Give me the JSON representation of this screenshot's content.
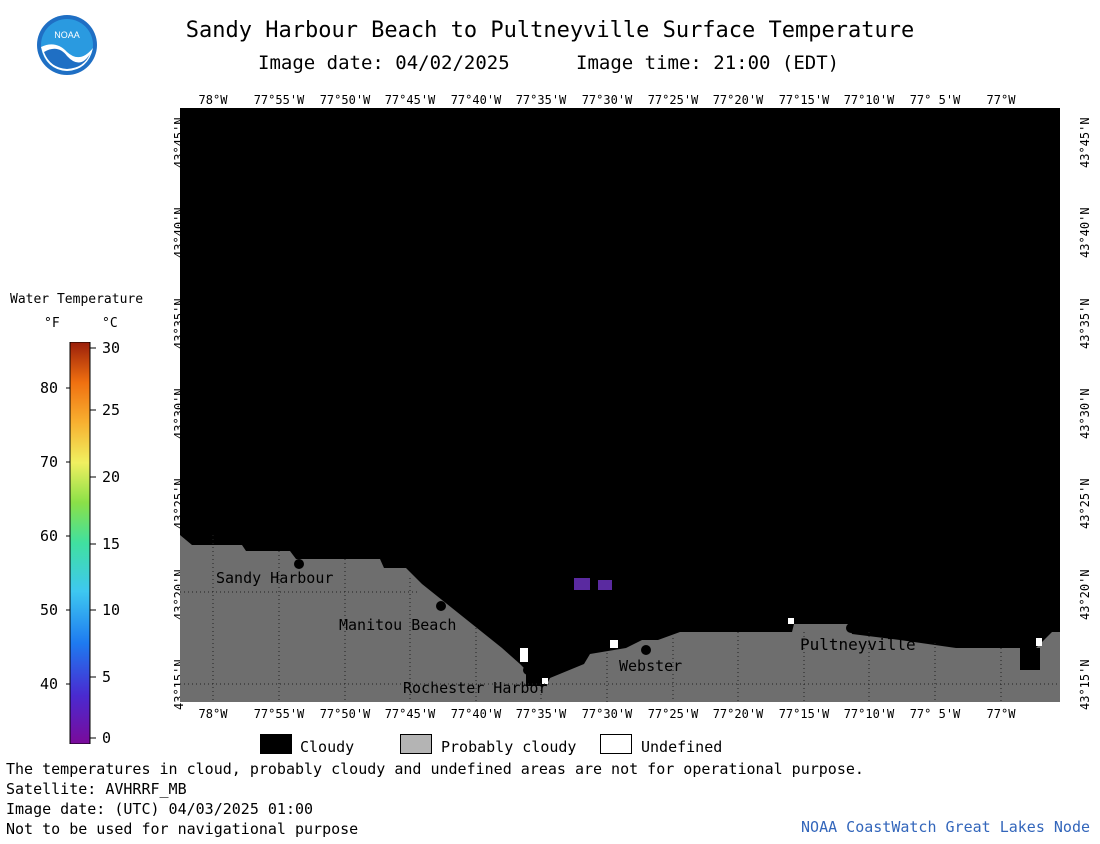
{
  "title": "Sandy Harbour Beach to Pultneyville Surface Temperature",
  "image_date": "Image date: 04/02/2025",
  "image_time": "Image time: 21:00 (EDT)",
  "logo": {
    "icon": "noaa-logo-icon",
    "text": "NOAA"
  },
  "longitude_labels": [
    "78°W",
    "77°55'W",
    "77°50'W",
    "77°45'W",
    "77°40'W",
    "77°35'W",
    "77°30'W",
    "77°25'W",
    "77°20'W",
    "77°15'W",
    "77°10'W",
    "77° 5'W",
    "77°W"
  ],
  "latitude_labels": [
    "43°45'N",
    "43°40'N",
    "43°35'N",
    "43°30'N",
    "43°25'N",
    "43°20'N",
    "43°15'N"
  ],
  "places": [
    {
      "name": "Sandy Harbour"
    },
    {
      "name": "Manitou Beach"
    },
    {
      "name": "Rochester Harbor"
    },
    {
      "name": "Webster"
    },
    {
      "name": "Pultneyville"
    }
  ],
  "legend": {
    "title": "Water Temperature",
    "unit_f": "°F",
    "unit_c": "°C",
    "ticks_f": [
      "80",
      "70",
      "60",
      "50",
      "40"
    ],
    "ticks_c": [
      "30",
      "25",
      "20",
      "15",
      "10",
      "5",
      "0"
    ]
  },
  "key": [
    {
      "label": "Cloudy",
      "color": "#000000"
    },
    {
      "label": "Probably cloudy",
      "color": "#b4b4b4"
    },
    {
      "label": "Undefined",
      "color": "#ffffff"
    }
  ],
  "footer": {
    "note": "The temperatures in cloud, probably cloudy and undefined areas are not for operational purpose.",
    "satellite": "Satellite: AVHRRF_MB",
    "utc_date": "Image date: (UTC) 04/03/2025  01:00",
    "nav": "Not to be used for navigational purpose",
    "credit": "NOAA CoastWatch Great Lakes Node"
  },
  "colors": {
    "land": "#6e6e6e",
    "cloud": "#000000",
    "water_pixels": "#5a2aa0"
  }
}
